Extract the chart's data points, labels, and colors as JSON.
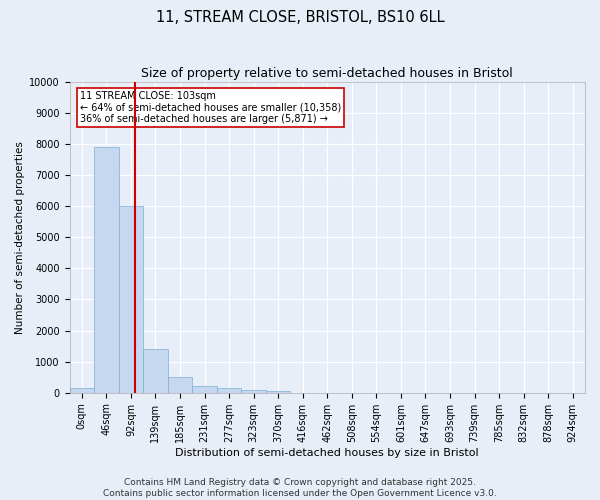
{
  "title": "11, STREAM CLOSE, BRISTOL, BS10 6LL",
  "subtitle": "Size of property relative to semi-detached houses in Bristol",
  "xlabel": "Distribution of semi-detached houses by size in Bristol",
  "ylabel": "Number of semi-detached properties",
  "footer_line1": "Contains HM Land Registry data © Crown copyright and database right 2025.",
  "footer_line2": "Contains public sector information licensed under the Open Government Licence v3.0.",
  "bin_labels": [
    "0sqm",
    "46sqm",
    "92sqm",
    "139sqm",
    "185sqm",
    "231sqm",
    "277sqm",
    "323sqm",
    "370sqm",
    "416sqm",
    "462sqm",
    "508sqm",
    "554sqm",
    "601sqm",
    "647sqm",
    "693sqm",
    "739sqm",
    "785sqm",
    "832sqm",
    "878sqm",
    "924sqm"
  ],
  "bar_values": [
    150,
    7900,
    6000,
    1400,
    500,
    230,
    150,
    100,
    60,
    5,
    0,
    0,
    0,
    0,
    0,
    0,
    0,
    0,
    0,
    0,
    0
  ],
  "bar_color": "#C5D8F0",
  "bar_edge_color": "#7BAFD4",
  "red_line_x": 2.18,
  "red_line_color": "#CC0000",
  "annotation_line1": "11 STREAM CLOSE: 103sqm",
  "annotation_line2": "← 64% of semi-detached houses are smaller (10,358)",
  "annotation_line3": "36% of semi-detached houses are larger (5,871) →",
  "ylim": [
    0,
    10000
  ],
  "yticks": [
    0,
    1000,
    2000,
    3000,
    4000,
    5000,
    6000,
    7000,
    8000,
    9000,
    10000
  ],
  "background_color": "#e8eef8",
  "axes_background": "#e8eef8",
  "grid_color": "#ffffff",
  "title_fontsize": 10.5,
  "subtitle_fontsize": 9,
  "annotation_fontsize": 7,
  "ylabel_fontsize": 7.5,
  "xlabel_fontsize": 8,
  "tick_fontsize": 7,
  "footer_fontsize": 6.5
}
